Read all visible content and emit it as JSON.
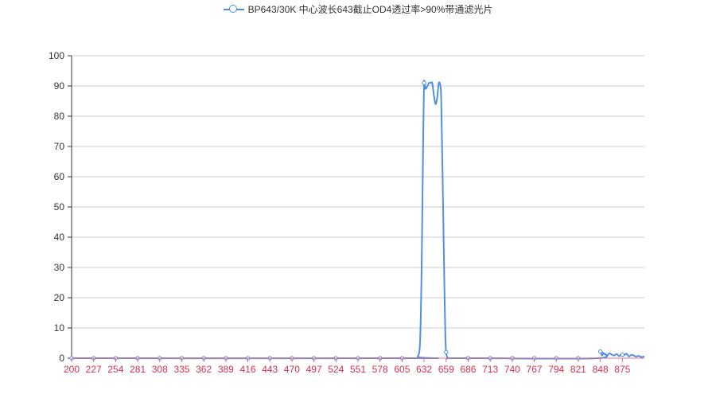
{
  "legend": {
    "label": "BP643/30K 中心波长643截止OD4透过率>90%带通滤光片"
  },
  "colors": {
    "series": "#4f8fe6",
    "x_axis": "#e06c86",
    "x_tick_text": "#d6304e",
    "grid": "#cccccc",
    "y_text": "#333333"
  },
  "chart_data": {
    "type": "line",
    "title": "",
    "xlabel": "",
    "ylabel": "",
    "ylim": [
      0,
      100
    ],
    "yticks": [
      0,
      10,
      20,
      30,
      40,
      50,
      60,
      70,
      80,
      90,
      100
    ],
    "x_range": [
      200,
      902
    ],
    "xticks": [
      200,
      227,
      254,
      281,
      308,
      335,
      362,
      389,
      416,
      443,
      470,
      497,
      524,
      551,
      578,
      605,
      632,
      659,
      686,
      713,
      740,
      767,
      794,
      821,
      848,
      875
    ],
    "grid": "horizontal",
    "legend_position": "top-center",
    "series": [
      {
        "name": "BP643/30K 中心波长643截止OD4透过率>90%带通滤光片",
        "x": [
          200,
          620,
          624,
          627,
          629,
          631,
          632,
          633,
          634,
          636,
          638,
          640,
          642,
          644,
          646,
          648,
          650,
          652,
          653,
          655,
          657,
          658,
          659,
          661,
          663,
          700,
          846,
          848,
          850,
          853,
          856,
          859,
          862,
          865,
          868,
          871,
          874,
          877,
          880,
          883,
          886,
          889,
          892,
          895,
          898,
          902
        ],
        "y": [
          0,
          0,
          0.5,
          5,
          30,
          75,
          91,
          90,
          89,
          90,
          91,
          91,
          91,
          87,
          84,
          86,
          91,
          90,
          85,
          55,
          22,
          8,
          2,
          0,
          0,
          0,
          0,
          2.2,
          1,
          1.5,
          0.8,
          1.6,
          1.2,
          0.9,
          1.4,
          0.7,
          1.3,
          1.0,
          1.5,
          0.6,
          1.1,
          0.9,
          0.5,
          0.8,
          0.4,
          0.6
        ]
      }
    ]
  }
}
